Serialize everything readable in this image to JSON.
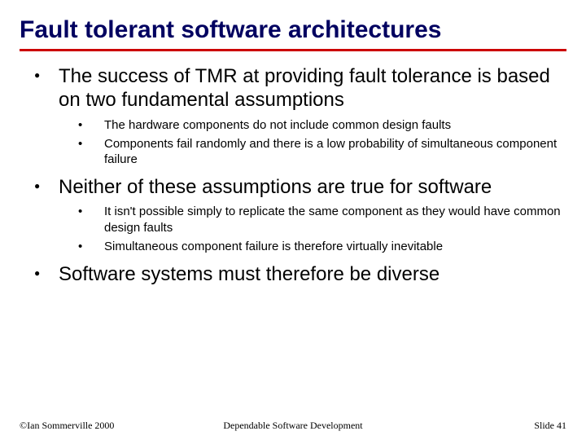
{
  "title": "Fault tolerant software architectures",
  "bullets": [
    {
      "text": "The success of TMR at providing fault tolerance is based on two fundamental assumptions",
      "sub": [
        "The hardware components do not include common design faults",
        "Components fail randomly and there is a low probability of simultaneous component failure"
      ]
    },
    {
      "text": "Neither of these assumptions are true for software",
      "sub": [
        "It isn't possible simply to replicate the same component as they would have common design faults",
        "Simultaneous component failure is therefore virtually inevitable"
      ]
    },
    {
      "text": "Software systems must therefore be diverse",
      "sub": []
    }
  ],
  "footer": {
    "left": "©Ian Sommerville 2000",
    "center": "Dependable Software Development",
    "right": "Slide 41"
  }
}
